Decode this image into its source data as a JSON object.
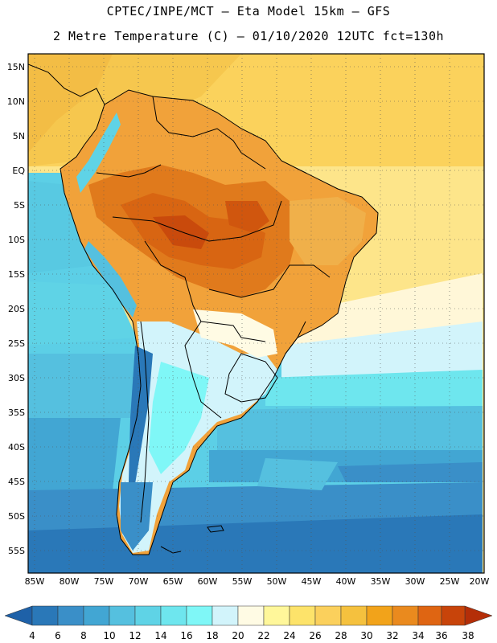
{
  "header": {
    "line1": "CPTEC/INPE/MCT –  Eta Model 15km – GFS",
    "line2": "2 Metre Temperature (C) – 01/10/2020 12UTC fct=130h"
  },
  "map": {
    "variable": "2 Metre Temperature",
    "units": "C",
    "lat_ticks": [
      "15N",
      "10N",
      "5N",
      "EQ",
      "5S",
      "10S",
      "15S",
      "20S",
      "25S",
      "30S",
      "35S",
      "40S",
      "45S",
      "50S",
      "55S"
    ],
    "lon_ticks": [
      "85W",
      "80W",
      "75W",
      "70W",
      "65W",
      "60W",
      "55W",
      "50W",
      "45W",
      "40W",
      "35W",
      "30W",
      "25W",
      "20W"
    ]
  },
  "colorbar": {
    "labels": [
      "4",
      "6",
      "8",
      "10",
      "12",
      "14",
      "16",
      "18",
      "20",
      "22",
      "24",
      "26",
      "28",
      "30",
      "32",
      "34",
      "36",
      "38"
    ],
    "colors": [
      "#1e61a8",
      "#2a78b8",
      "#3a8fc8",
      "#42a6d3",
      "#55c0df",
      "#5fd3e6",
      "#6ee6ee",
      "#7ff7f7",
      "#d2f4fb",
      "#fffbe4",
      "#fff79a",
      "#fde36a",
      "#fbd05c",
      "#f5c13e",
      "#f2a31a",
      "#ea8a1e",
      "#df6512",
      "#c8440a",
      "#b42e08"
    ]
  }
}
